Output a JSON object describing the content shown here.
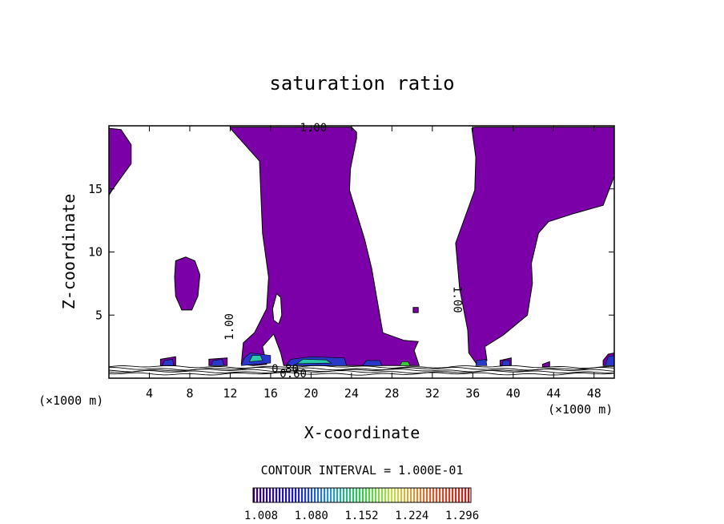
{
  "chart_data": {
    "type": "heatmap",
    "title": "saturation ratio",
    "xlabel": "X-coordinate",
    "ylabel": "Z-coordinate",
    "x_unit_left": "(×1000 m)",
    "x_unit_right": "(×1000 m)",
    "xlim": [
      0,
      50
    ],
    "ylim": [
      0,
      20
    ],
    "x_ticks": [
      4,
      8,
      12,
      16,
      20,
      24,
      28,
      32,
      36,
      40,
      44,
      48
    ],
    "y_ticks": [
      5,
      10,
      15
    ],
    "contour_interval_text": "CONTOUR INTERVAL = 1.000E-01",
    "contour_labels": [
      "1.00",
      "1.00",
      "1.00",
      "0.80",
      "0.60"
    ],
    "colorbar": {
      "ticks": [
        "1.008",
        "1.080",
        "1.152",
        "1.224",
        "1.296"
      ],
      "min": 1.008,
      "max": 1.32
    },
    "colors": {
      "fill_main": "#7b00a8",
      "fill_blue": "#2838c8",
      "fill_cyan": "#28c8a8",
      "fill_green": "#38c838"
    },
    "regions": [
      {
        "name": "left-edge",
        "poly": [
          [
            0,
            19.8
          ],
          [
            1.2,
            19.7
          ],
          [
            2.2,
            18.5
          ],
          [
            2.2,
            17
          ],
          [
            1.3,
            16
          ],
          [
            0.4,
            15
          ],
          [
            0,
            14.5
          ]
        ]
      },
      {
        "name": "isolated-blob",
        "poly": [
          [
            6.6,
            9.3
          ],
          [
            7.6,
            9.6
          ],
          [
            8.5,
            9.3
          ],
          [
            9.0,
            8.2
          ],
          [
            8.8,
            6.5
          ],
          [
            8.2,
            5.4
          ],
          [
            7.2,
            5.4
          ],
          [
            6.6,
            6.5
          ],
          [
            6.5,
            8.0
          ]
        ]
      },
      {
        "name": "central-plume",
        "poly": [
          [
            12,
            19.9
          ],
          [
            24,
            19.9
          ],
          [
            24.5,
            19.5
          ],
          [
            24.5,
            19.0
          ],
          [
            23.9,
            16.6
          ],
          [
            23.8,
            14.9
          ],
          [
            25.3,
            11.0
          ],
          [
            26.0,
            8.7
          ],
          [
            27.1,
            3.6
          ],
          [
            29.2,
            3.0
          ],
          [
            30.6,
            2.9
          ],
          [
            30.2,
            2.2
          ],
          [
            30.7,
            1.0
          ],
          [
            27.3,
            1.0
          ],
          [
            22.5,
            1.0
          ],
          [
            20.5,
            1.0
          ],
          [
            19.0,
            1.0
          ],
          [
            17.3,
            1.0
          ],
          [
            17.0,
            2.0
          ],
          [
            16.3,
            3.5
          ],
          [
            15.2,
            2.5
          ],
          [
            15.6,
            1.1
          ],
          [
            14.3,
            1.0
          ],
          [
            13.1,
            1.1
          ],
          [
            13.3,
            2.8
          ],
          [
            14.4,
            3.6
          ],
          [
            15.6,
            5.5
          ],
          [
            15.8,
            8.0
          ],
          [
            15.2,
            11.5
          ],
          [
            14.9,
            17.2
          ],
          [
            12.0,
            19.8
          ]
        ]
      },
      {
        "name": "central-plume-hole",
        "poly": [
          [
            16.2,
            5.5
          ],
          [
            16.6,
            6.7
          ],
          [
            17.0,
            6.4
          ],
          [
            17.1,
            5.0
          ],
          [
            16.8,
            4.3
          ],
          [
            16.3,
            4.6
          ]
        ]
      },
      {
        "name": "right-plume",
        "poly": [
          [
            36.2,
            19.9
          ],
          [
            50,
            19.9
          ],
          [
            50,
            16.0
          ],
          [
            48.9,
            13.7
          ],
          [
            45.8,
            13.0
          ],
          [
            43.5,
            12.4
          ],
          [
            42.5,
            11.5
          ],
          [
            41.8,
            9.1
          ],
          [
            41.9,
            7.5
          ],
          [
            41.4,
            5.0
          ],
          [
            39.0,
            3.4
          ],
          [
            37.2,
            2.5
          ],
          [
            37.4,
            1.4
          ],
          [
            36.4,
            1.1
          ],
          [
            35.6,
            2.0
          ],
          [
            35.5,
            3.8
          ],
          [
            34.7,
            7.1
          ],
          [
            34.3,
            10.7
          ],
          [
            36.2,
            14.9
          ],
          [
            36.3,
            17.5
          ],
          [
            35.9,
            19.8
          ]
        ]
      },
      {
        "name": "speck-a",
        "poly": [
          [
            30.1,
            5.6
          ],
          [
            30.6,
            5.6
          ],
          [
            30.6,
            5.2
          ],
          [
            30.1,
            5.2
          ]
        ]
      },
      {
        "name": "speck-b",
        "poly": [
          [
            5.1,
            1.5
          ],
          [
            6.6,
            1.7
          ],
          [
            6.6,
            1.0
          ],
          [
            5.1,
            1.0
          ]
        ]
      },
      {
        "name": "speck-c",
        "poly": [
          [
            9.9,
            1.5
          ],
          [
            11.7,
            1.6
          ],
          [
            11.7,
            1.0
          ],
          [
            9.9,
            1.0
          ]
        ]
      },
      {
        "name": "speck-d",
        "poly": [
          [
            38.7,
            1.4
          ],
          [
            39.8,
            1.6
          ],
          [
            39.8,
            1.0
          ],
          [
            38.7,
            1.0
          ]
        ]
      },
      {
        "name": "speck-e",
        "poly": [
          [
            48.9,
            1.4
          ],
          [
            49.4,
            1.9
          ],
          [
            50,
            2.0
          ],
          [
            50,
            1.0
          ],
          [
            48.9,
            1.0
          ]
        ]
      },
      {
        "name": "speck-f",
        "poly": [
          [
            42.9,
            1.1
          ],
          [
            43.6,
            1.3
          ],
          [
            43.6,
            0.9
          ],
          [
            42.9,
            0.9
          ]
        ]
      }
    ],
    "moist_patches": [
      {
        "level": "blue",
        "poly": [
          [
            13.1,
            1.0
          ],
          [
            16.0,
            1.2
          ],
          [
            16.0,
            1.8
          ],
          [
            14.0,
            2.0
          ],
          [
            13.4,
            1.6
          ]
        ]
      },
      {
        "level": "cyan",
        "poly": [
          [
            13.9,
            1.3
          ],
          [
            15.2,
            1.4
          ],
          [
            15.0,
            1.8
          ],
          [
            14.2,
            1.8
          ]
        ]
      },
      {
        "level": "blue",
        "poly": [
          [
            17.5,
            1.0
          ],
          [
            23.5,
            1.0
          ],
          [
            23.3,
            1.6
          ],
          [
            20.0,
            1.7
          ],
          [
            18.0,
            1.5
          ]
        ]
      },
      {
        "level": "cyan",
        "poly": [
          [
            18.6,
            1.15
          ],
          [
            22.0,
            1.2
          ],
          [
            21.5,
            1.45
          ],
          [
            19.2,
            1.5
          ]
        ]
      },
      {
        "level": "blue",
        "poly": [
          [
            25.1,
            1.0
          ],
          [
            27.0,
            1.0
          ],
          [
            26.8,
            1.4
          ],
          [
            25.5,
            1.4
          ]
        ]
      },
      {
        "level": "green",
        "poly": [
          [
            28.8,
            1.0
          ],
          [
            29.8,
            1.0
          ],
          [
            29.6,
            1.3
          ],
          [
            29.0,
            1.3
          ]
        ]
      },
      {
        "level": "blue",
        "poly": [
          [
            36.3,
            1.0
          ],
          [
            37.4,
            1.0
          ],
          [
            37.3,
            1.5
          ],
          [
            36.4,
            1.4
          ]
        ]
      },
      {
        "level": "blue",
        "poly": [
          [
            38.9,
            1.0
          ],
          [
            39.7,
            1.0
          ],
          [
            39.6,
            1.4
          ],
          [
            39.0,
            1.4
          ]
        ]
      },
      {
        "level": "blue",
        "poly": [
          [
            49.1,
            1.0
          ],
          [
            50,
            1.0
          ],
          [
            50,
            1.8
          ],
          [
            49.4,
            1.7
          ]
        ]
      },
      {
        "level": "blue",
        "poly": [
          [
            5.3,
            1.0
          ],
          [
            6.4,
            1.0
          ],
          [
            6.3,
            1.5
          ],
          [
            5.5,
            1.4
          ]
        ]
      },
      {
        "level": "blue",
        "poly": [
          [
            10.1,
            1.0
          ],
          [
            11.4,
            1.0
          ],
          [
            11.2,
            1.5
          ],
          [
            10.3,
            1.4
          ]
        ]
      }
    ],
    "near_surface_lines": [
      0.9,
      0.75,
      0.62,
      0.5,
      0.35
    ]
  }
}
